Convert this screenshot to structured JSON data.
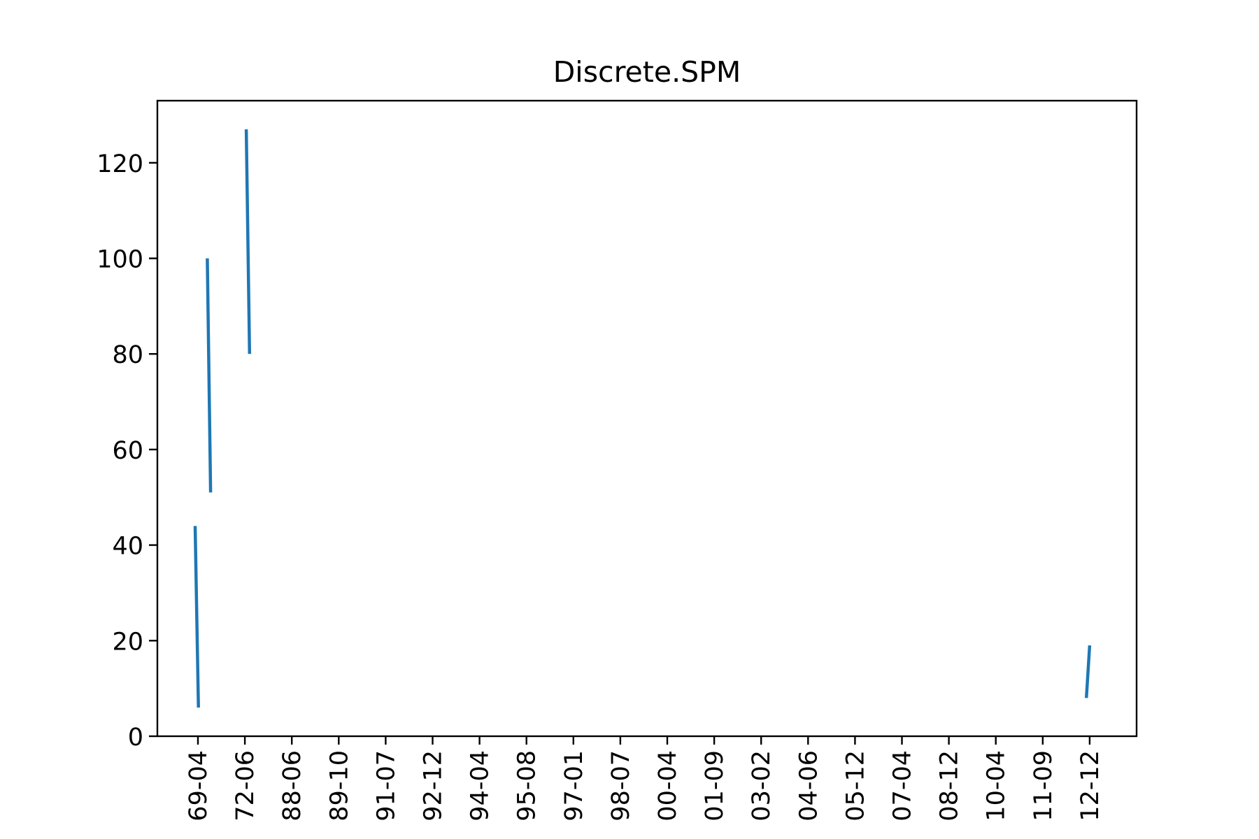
{
  "chart_data": {
    "type": "line",
    "title": "Discrete.SPM",
    "xlabel": "",
    "ylabel": "",
    "x_tick_labels": [
      "69-04",
      "72-06",
      "88-06",
      "89-10",
      "91-07",
      "92-12",
      "94-04",
      "95-08",
      "97-01",
      "98-07",
      "00-04",
      "01-09",
      "03-02",
      "04-06",
      "05-12",
      "07-04",
      "08-12",
      "10-04",
      "11-09",
      "12-12"
    ],
    "y_ticks": [
      0,
      20,
      40,
      60,
      80,
      100,
      120
    ],
    "ylim": [
      0,
      133
    ],
    "grid": false,
    "legend": "none",
    "series_color": "#1f77b4",
    "segments": [
      {
        "x": [
          -0.06,
          0.01
        ],
        "y": [
          44,
          6
        ]
      },
      {
        "x": [
          0.2,
          0.27
        ],
        "y": [
          100,
          51
        ]
      },
      {
        "x": [
          1.03,
          1.1
        ],
        "y": [
          127,
          80
        ]
      },
      {
        "x": [
          18.93,
          19.0
        ],
        "y": [
          8,
          19
        ]
      }
    ]
  }
}
